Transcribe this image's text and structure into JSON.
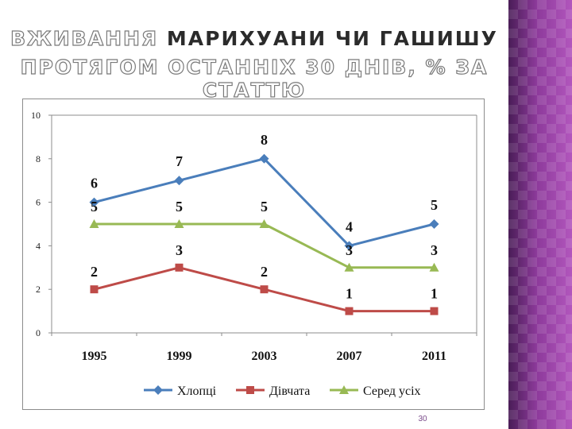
{
  "slide": {
    "title_line1_outline": "ВЖИВАННЯ",
    "title_line1_solid": "МАРИХУАНИ ЧИ ГАШИШУ",
    "title_line2": "ПРОТЯГОМ ОСТАННІХ 30 ДНІВ, % ЗА СТАТТЮ",
    "page_number": "30",
    "accent_color": "#7a2f86"
  },
  "chart_data": {
    "type": "line",
    "title": "",
    "xlabel": "",
    "ylabel": "",
    "categories": [
      "1995",
      "1999",
      "2003",
      "2007",
      "2011"
    ],
    "ylim": [
      0,
      10
    ],
    "yticks": [
      "0",
      "2",
      "4",
      "6",
      "8",
      "10"
    ],
    "grid": false,
    "legend_position": "bottom",
    "series": [
      {
        "name": "Хлопці",
        "values": [
          6,
          7,
          8,
          4,
          5
        ],
        "color": "#4a7ebb",
        "marker": "diamond",
        "labels": [
          "6",
          "7",
          "8",
          "4",
          "5"
        ]
      },
      {
        "name": "Дівчата",
        "values": [
          2,
          3,
          2,
          1,
          1
        ],
        "color": "#be4b48",
        "marker": "square",
        "labels": [
          "2",
          "3",
          "2",
          "1",
          "1"
        ]
      },
      {
        "name": "Серед усіх",
        "values": [
          5,
          5,
          5,
          3,
          3
        ],
        "color": "#98b954",
        "marker": "triangle",
        "labels": [
          "5",
          "5",
          "5",
          "3",
          "3"
        ]
      }
    ]
  }
}
